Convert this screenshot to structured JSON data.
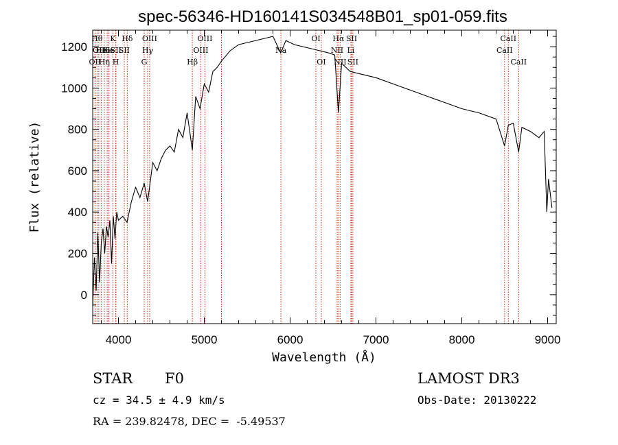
{
  "chart_data": {
    "type": "line",
    "title": "spec-56346-HD160141S034548B01_sp01-059.fits",
    "xlabel": "Wavelength (Å)",
    "ylabel": "Flux (relative)",
    "xlim": [
      3700,
      9100
    ],
    "ylim": [
      -140,
      1280
    ],
    "x_ticks": [
      4000,
      5000,
      6000,
      7000,
      8000,
      9000
    ],
    "y_ticks": [
      0,
      200,
      400,
      600,
      800,
      1000,
      1200
    ],
    "grid": false,
    "series": [
      {
        "name": "spectrum",
        "x": [
          3700,
          3720,
          3740,
          3760,
          3780,
          3800,
          3820,
          3840,
          3860,
          3880,
          3900,
          3920,
          3940,
          3960,
          3980,
          4000,
          4050,
          4100,
          4150,
          4200,
          4250,
          4300,
          4340,
          4400,
          4450,
          4500,
          4550,
          4600,
          4650,
          4700,
          4750,
          4800,
          4861,
          4900,
          4950,
          5000,
          5050,
          5100,
          5150,
          5200,
          5300,
          5400,
          5500,
          5600,
          5700,
          5800,
          5890,
          5950,
          6050,
          6150,
          6250,
          6350,
          6450,
          6520,
          6563,
          6600,
          6700,
          6800,
          6900,
          7000,
          7200,
          7400,
          7600,
          7800,
          8000,
          8200,
          8400,
          8498,
          8542,
          8600,
          8662,
          8700,
          8800,
          8900,
          8960,
          8990,
          9010,
          9050
        ],
        "y": [
          -60,
          180,
          20,
          300,
          60,
          250,
          320,
          200,
          330,
          280,
          360,
          150,
          380,
          270,
          400,
          360,
          380,
          350,
          450,
          520,
          470,
          540,
          450,
          640,
          600,
          660,
          700,
          720,
          690,
          800,
          760,
          880,
          700,
          960,
          900,
          1020,
          980,
          1080,
          1100,
          1130,
          1180,
          1210,
          1220,
          1230,
          1240,
          1250,
          1170,
          1230,
          1210,
          1200,
          1190,
          1180,
          1170,
          1160,
          880,
          1120,
          1080,
          1070,
          1060,
          1050,
          1020,
          990,
          960,
          930,
          900,
          880,
          850,
          720,
          820,
          830,
          690,
          810,
          790,
          760,
          790,
          400,
          560,
          420
        ]
      }
    ],
    "lines": [
      {
        "x": 3727,
        "label": "OII",
        "row": 2
      },
      {
        "x": 3750,
        "label": "Hθ",
        "row": 0
      },
      {
        "x": 3771,
        "label": "OII",
        "row": 1
      },
      {
        "x": 3798,
        "label": "He",
        "row": 1
      },
      {
        "x": 3835,
        "label": "Hη",
        "row": 2
      },
      {
        "x": 3869,
        "label": "He",
        "row": 1
      },
      {
        "x": 3889,
        "label": "He",
        "row": 1
      },
      {
        "x": 3934,
        "label": "K",
        "row": 0
      },
      {
        "x": 3968,
        "label": "H",
        "row": 2
      },
      {
        "x": 3970,
        "label": "SII",
        "row": 1
      },
      {
        "x": 4068,
        "label": "SII",
        "row": 1
      },
      {
        "x": 4102,
        "label": "Hδ",
        "row": 0
      },
      {
        "x": 4300,
        "label": "G",
        "row": 2
      },
      {
        "x": 4340,
        "label": "Hγ",
        "row": 1
      },
      {
        "x": 4363,
        "label": "OIII",
        "row": 0
      },
      {
        "x": 4861,
        "label": "Hβ",
        "row": 2
      },
      {
        "x": 4959,
        "label": "OIII",
        "row": 1
      },
      {
        "x": 5007,
        "label": "OIII",
        "row": 0
      },
      {
        "x": 5200,
        "label": "",
        "row": 0
      },
      {
        "x": 5893,
        "label": "Na",
        "row": 1
      },
      {
        "x": 6300,
        "label": "OI",
        "row": 0
      },
      {
        "x": 6363,
        "label": "OI",
        "row": 2
      },
      {
        "x": 6548,
        "label": "NII",
        "row": 1
      },
      {
        "x": 6563,
        "label": "Hα",
        "row": 0
      },
      {
        "x": 6583,
        "label": "NII",
        "row": 2
      },
      {
        "x": 6707,
        "label": "Li",
        "row": 1
      },
      {
        "x": 6716,
        "label": "SII",
        "row": 0
      },
      {
        "x": 6731,
        "label": "SII",
        "row": 2
      },
      {
        "x": 8498,
        "label": "CaII",
        "row": 1
      },
      {
        "x": 8542,
        "label": "CaII",
        "row": 0
      },
      {
        "x": 8662,
        "label": "CaII",
        "row": 2
      }
    ]
  },
  "info": {
    "class_label": "STAR",
    "subclass": "F0",
    "survey": "LAMOST DR3",
    "cz": "cz = 34.5 ± 4.9 km/s",
    "obs_date": "Obs-Date: 20130222",
    "radec": "RA = 239.82478, DEC =  -5.49537"
  },
  "colors": {
    "spectrum": "#000000",
    "line_marker": "#cc2200",
    "axis": "#000000"
  }
}
